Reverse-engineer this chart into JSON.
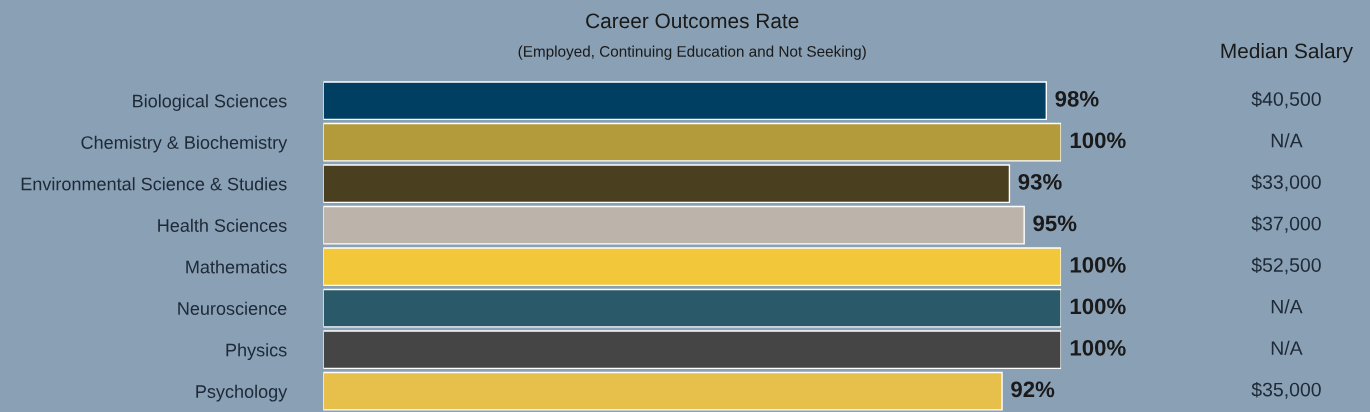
{
  "chart_data": {
    "type": "bar",
    "orientation": "horizontal",
    "title": "Career Outcomes Rate",
    "subtitle": "(Employed, Continuing Education and Not Seeking)",
    "categories": [
      "Biological Sciences",
      "Chemistry & Biochemistry",
      "Environmental Science & Studies",
      "Health Sciences",
      "Mathematics",
      "Neuroscience",
      "Physics",
      "Psychology"
    ],
    "values": [
      98,
      100,
      93,
      95,
      100,
      100,
      100,
      92
    ],
    "value_labels": [
      "98%",
      "100%",
      "93%",
      "95%",
      "100%",
      "100%",
      "100%",
      "92%"
    ],
    "colors": [
      "#003f62",
      "#b39a3a",
      "#4a3f1e",
      "#bcb3aa",
      "#f2c73a",
      "#2a5a6a",
      "#454545",
      "#e6c04a"
    ],
    "xlim": [
      0,
      100
    ],
    "tick_labels": "y",
    "grid": false,
    "annotations": [
      "Median Salary",
      "$40,500",
      "N/A",
      "$33,000",
      "$37,000",
      "$52,500",
      "N/A",
      "N/A",
      "$35,000"
    ]
  }
}
